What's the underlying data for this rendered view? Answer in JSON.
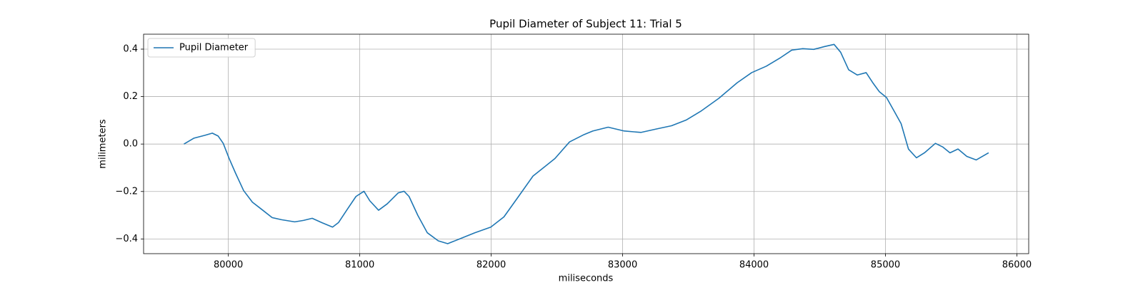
{
  "chart_data": {
    "type": "line",
    "title": "Pupil Diameter of Subject 11: Trial 5",
    "x_label": "miliseconds",
    "y_label": "milimeters",
    "x": [
      79662,
      79739,
      79822,
      79878,
      79922,
      79961,
      80006,
      80055,
      80116,
      80183,
      80255,
      80333,
      80405,
      80505,
      80571,
      80638,
      80710,
      80793,
      80838,
      80904,
      80971,
      81032,
      81076,
      81143,
      81209,
      81292,
      81337,
      81375,
      81442,
      81514,
      81597,
      81669,
      81764,
      81875,
      81997,
      82097,
      82208,
      82318,
      82402,
      82485,
      82596,
      82707,
      82773,
      82890,
      83012,
      83139,
      83261,
      83372,
      83483,
      83594,
      83733,
      83871,
      83982,
      84093,
      84204,
      84287,
      84371,
      84454,
      84537,
      84609,
      84659,
      84720,
      84786,
      84853,
      84908,
      84953,
      85008,
      85064,
      85119,
      85175,
      85236,
      85297,
      85380,
      85435,
      85491,
      85552,
      85619,
      85691,
      85785
    ],
    "series": [
      {
        "name": "Pupil Diameter",
        "color": "#1f77b4",
        "values": [
          0.0,
          0.025,
          0.037,
          0.046,
          0.034,
          0.003,
          -0.061,
          -0.123,
          -0.196,
          -0.245,
          -0.276,
          -0.31,
          -0.319,
          -0.328,
          -0.322,
          -0.313,
          -0.331,
          -0.35,
          -0.331,
          -0.276,
          -0.221,
          -0.199,
          -0.239,
          -0.279,
          -0.252,
          -0.206,
          -0.199,
          -0.221,
          -0.301,
          -0.374,
          -0.408,
          -0.42,
          -0.399,
          -0.374,
          -0.35,
          -0.307,
          -0.221,
          -0.135,
          -0.098,
          -0.061,
          0.009,
          0.04,
          0.055,
          0.071,
          0.055,
          0.049,
          0.064,
          0.077,
          0.101,
          0.138,
          0.193,
          0.258,
          0.301,
          0.328,
          0.365,
          0.396,
          0.402,
          0.399,
          0.411,
          0.42,
          0.387,
          0.313,
          0.291,
          0.301,
          0.255,
          0.221,
          0.196,
          0.141,
          0.086,
          -0.021,
          -0.058,
          -0.037,
          0.003,
          -0.012,
          -0.037,
          -0.021,
          -0.052,
          -0.067,
          -0.037
        ]
      }
    ],
    "xlim": [
      79355,
      86090
    ],
    "xticks": [
      80000,
      81000,
      82000,
      83000,
      84000,
      85000,
      86000
    ],
    "ylim": [
      -0.462,
      0.463
    ],
    "yticks": [
      {
        "value": -0.4,
        "label": "−0.4"
      },
      {
        "value": -0.2,
        "label": "−0.2"
      },
      {
        "value": 0,
        "label": "0.0"
      },
      0.2,
      0.4
    ],
    "grid": true,
    "legend": "upper-left"
  }
}
